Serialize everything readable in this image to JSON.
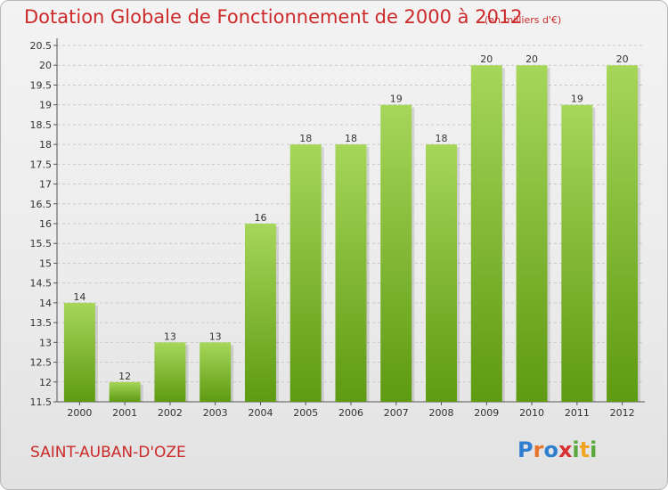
{
  "title": "Dotation Globale de Fonctionnement de 2000 à 2012",
  "unit_note": "(en milliers d'€)",
  "commune": "SAINT-AUBAN-D'OZE",
  "logo": {
    "letters": [
      "P",
      "r",
      "o",
      "x",
      "i",
      "t",
      "i"
    ],
    "colors": [
      "#2f7fd0",
      "#e8732a",
      "#2f7fd0",
      "#d8312f",
      "#58a83a",
      "#f0a623",
      "#58a83a"
    ]
  },
  "colors": {
    "title": "#cc2a2a",
    "bar_top": "#a6d65a",
    "bar_bottom": "#5e9a12",
    "grid": "#c8c8c8"
  },
  "chart_data": {
    "type": "bar",
    "title": "Dotation Globale de Fonctionnement de 2000 à 2012",
    "unit": "(en milliers d'€)",
    "categories": [
      "2000",
      "2001",
      "2002",
      "2003",
      "2004",
      "2005",
      "2006",
      "2007",
      "2008",
      "2009",
      "2010",
      "2011",
      "2012"
    ],
    "values": [
      14,
      12,
      13,
      13,
      16,
      18,
      18,
      19,
      18,
      20,
      20,
      19,
      20
    ],
    "value_labels": [
      "14",
      "12",
      "13",
      "13",
      "16",
      "18",
      "18",
      "19",
      "18",
      "20",
      "20",
      "19",
      "20"
    ],
    "ylim": [
      11.5,
      20.5
    ],
    "yticks": [
      "11.5",
      "12",
      "12.5",
      "13",
      "13.5",
      "14",
      "14.5",
      "15",
      "15.5",
      "16",
      "16.5",
      "17",
      "17.5",
      "18",
      "18.5",
      "19",
      "19.5",
      "20",
      "20.5"
    ],
    "xlabel": "",
    "ylabel": "",
    "grid": "horizontal dashed"
  }
}
